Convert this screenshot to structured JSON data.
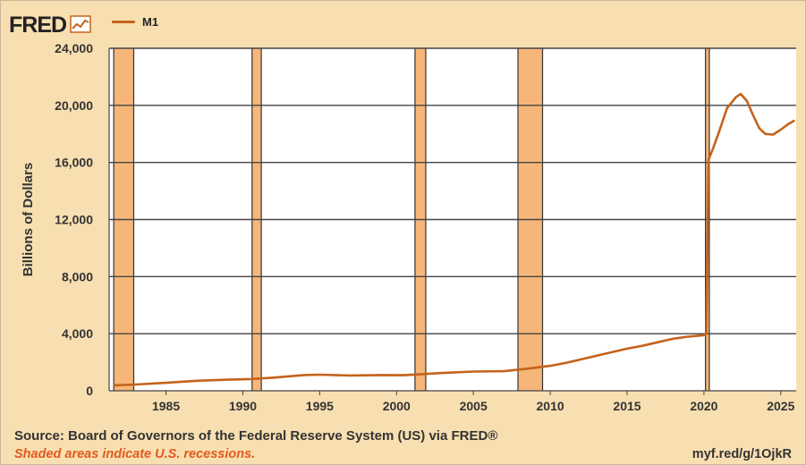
{
  "brand": {
    "logo": "FRED",
    "icon": "fred-chart-icon"
  },
  "chart_data": {
    "type": "line",
    "title": "",
    "ylabel": "Billions of Dollars",
    "xlabel": "",
    "series": [
      {
        "name": "M1",
        "color": "#c4631c",
        "points": [
          [
            1981.6,
            380
          ],
          [
            1983,
            440
          ],
          [
            1985,
            560
          ],
          [
            1987,
            700
          ],
          [
            1989,
            780
          ],
          [
            1990.5,
            820
          ],
          [
            1992,
            920
          ],
          [
            1994,
            1100
          ],
          [
            1995,
            1130
          ],
          [
            1997,
            1070
          ],
          [
            1999,
            1100
          ],
          [
            2000.5,
            1090
          ],
          [
            2001.5,
            1150
          ],
          [
            2003,
            1250
          ],
          [
            2005,
            1350
          ],
          [
            2007,
            1370
          ],
          [
            2008.5,
            1550
          ],
          [
            2010,
            1750
          ],
          [
            2011,
            1950
          ],
          [
            2012,
            2200
          ],
          [
            2013,
            2450
          ],
          [
            2014,
            2700
          ],
          [
            2015,
            2950
          ],
          [
            2016,
            3150
          ],
          [
            2017,
            3400
          ],
          [
            2018,
            3650
          ],
          [
            2019,
            3800
          ],
          [
            2020.0,
            3900
          ],
          [
            2020.15,
            4000
          ],
          [
            2020.3,
            16200
          ],
          [
            2020.6,
            17000
          ],
          [
            2021.0,
            18200
          ],
          [
            2021.5,
            19800
          ],
          [
            2022.1,
            20600
          ],
          [
            2022.4,
            20800
          ],
          [
            2022.8,
            20300
          ],
          [
            2023.2,
            19300
          ],
          [
            2023.6,
            18400
          ],
          [
            2024.0,
            18000
          ],
          [
            2024.5,
            17950
          ],
          [
            2025.0,
            18300
          ],
          [
            2025.5,
            18700
          ],
          [
            2025.9,
            18950
          ]
        ]
      }
    ],
    "recessions": [
      [
        1981.6,
        1982.9
      ],
      [
        1990.6,
        1991.2
      ],
      [
        2001.2,
        2001.9
      ],
      [
        2007.9,
        2009.5
      ],
      [
        2020.1,
        2020.35
      ]
    ],
    "x_ticks": [
      "1985",
      "1990",
      "1995",
      "2000",
      "2005",
      "2010",
      "2015",
      "2020",
      "2025"
    ],
    "y_ticks": [
      "0",
      "4,000",
      "8,000",
      "12,000",
      "16,000",
      "20,000",
      "24,000"
    ],
    "xlim": [
      1981.3,
      2026.0
    ],
    "ylim": [
      0,
      24000
    ],
    "grid": true,
    "legend_position": "top-left",
    "colors": {
      "line": "#c4631c",
      "recession": "#f7b679",
      "plot_bg": "#ffffff",
      "grid": "#d8d8d8"
    }
  },
  "footer": {
    "source": "Source: Board of Governors of the Federal Reserve System (US) via FRED®",
    "note": "Shaded areas indicate U.S. recessions.",
    "url": "myf.red/g/1OjkR"
  }
}
